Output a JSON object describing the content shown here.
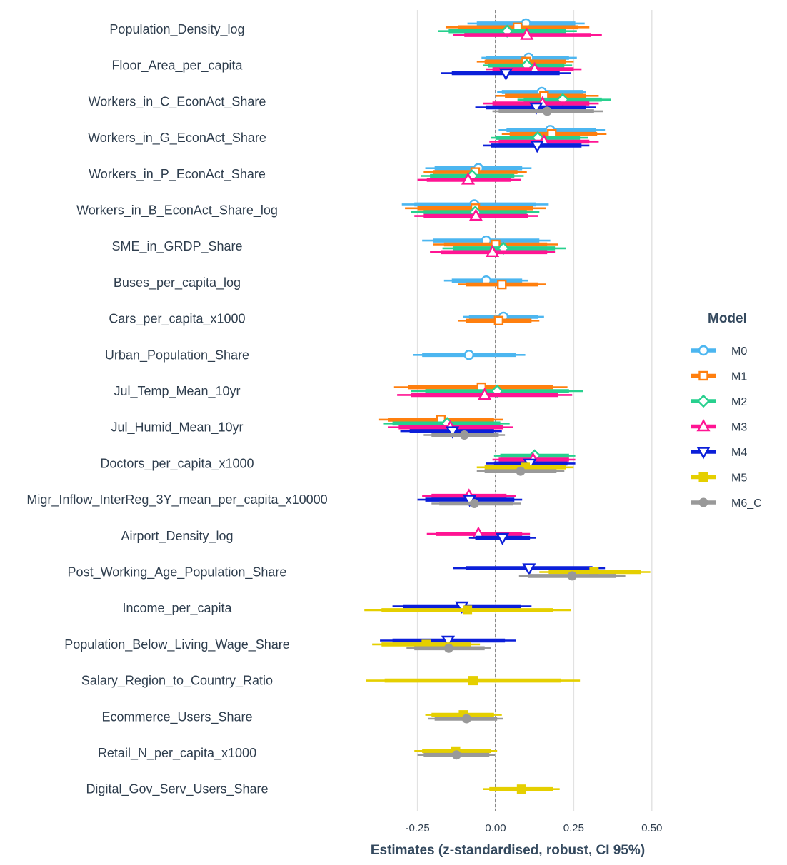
{
  "chart_data": {
    "type": "forest",
    "xlabel": "Estimates (z-standardised, robust, CI 95%)",
    "xlim": [
      -0.5,
      0.5
    ],
    "xticks": [
      -0.25,
      0.0,
      0.25,
      0.5
    ],
    "xtick_labels": [
      "-0.25",
      "0.00",
      "0.25",
      "0.50"
    ],
    "reference_line": 0,
    "legend_title": "Model",
    "legend_position": "right",
    "models": [
      {
        "name": "M0",
        "color": "#4cb6f0",
        "marker": "circle"
      },
      {
        "name": "M1",
        "color": "#ff7f0e",
        "marker": "square"
      },
      {
        "name": "M2",
        "color": "#27d08e",
        "marker": "diamond"
      },
      {
        "name": "M3",
        "color": "#ff1493",
        "marker": "triangle-up"
      },
      {
        "name": "M4",
        "color": "#0b1fd9",
        "marker": "triangle-down"
      },
      {
        "name": "M5",
        "color": "#e5cf00",
        "marker": "square-filled"
      },
      {
        "name": "M6_C",
        "color": "#999999",
        "marker": "circle-filled"
      }
    ],
    "variables": [
      {
        "name": "Population_Density_log",
        "estimates": [
          {
            "model": "M0",
            "est": 0.097,
            "lo": -0.06,
            "hi": 0.255,
            "lo95": -0.09,
            "hi95": 0.285
          },
          {
            "model": "M1",
            "est": 0.07,
            "lo": -0.12,
            "hi": 0.265,
            "lo95": -0.16,
            "hi95": 0.3
          },
          {
            "model": "M2",
            "est": 0.037,
            "lo": -0.15,
            "hi": 0.225,
            "lo95": -0.185,
            "hi95": 0.26
          },
          {
            "model": "M3",
            "est": 0.1,
            "lo": -0.1,
            "hi": 0.305,
            "lo95": -0.135,
            "hi95": 0.34
          }
        ]
      },
      {
        "name": "Floor_Area_per_capita",
        "estimates": [
          {
            "model": "M0",
            "est": 0.106,
            "lo": -0.03,
            "hi": 0.235,
            "lo95": -0.045,
            "hi95": 0.26
          },
          {
            "model": "M1",
            "est": 0.098,
            "lo": -0.035,
            "hi": 0.225,
            "lo95": -0.06,
            "hi95": 0.25
          },
          {
            "model": "M2",
            "est": 0.1,
            "lo": -0.025,
            "hi": 0.22,
            "lo95": -0.04,
            "hi95": 0.245
          },
          {
            "model": "M3",
            "est": 0.125,
            "lo": -0.01,
            "hi": 0.25,
            "lo95": -0.03,
            "hi95": 0.275
          },
          {
            "model": "M4",
            "est": 0.033,
            "lo": -0.14,
            "hi": 0.205,
            "lo95": -0.175,
            "hi95": 0.24
          }
        ]
      },
      {
        "name": "Workers_in_C_EconAct_Share",
        "estimates": [
          {
            "model": "M0",
            "est": 0.148,
            "lo": 0.02,
            "hi": 0.28,
            "lo95": 0.005,
            "hi95": 0.29
          },
          {
            "model": "M1",
            "est": 0.155,
            "lo": 0.03,
            "hi": 0.29,
            "lo95": 0.0,
            "hi95": 0.33
          },
          {
            "model": "M2",
            "est": 0.215,
            "lo": 0.09,
            "hi": 0.34,
            "lo95": 0.07,
            "hi95": 0.37
          },
          {
            "model": "M3",
            "est": 0.15,
            "lo": -0.01,
            "hi": 0.3,
            "lo95": -0.04,
            "hi95": 0.33
          },
          {
            "model": "M4",
            "est": 0.13,
            "lo": -0.03,
            "hi": 0.29,
            "lo95": -0.065,
            "hi95": 0.32
          },
          {
            "model": "M6_C",
            "est": 0.165,
            "lo": 0.01,
            "hi": 0.315,
            "lo95": -0.01,
            "hi95": 0.345
          }
        ]
      },
      {
        "name": "Workers_in_G_EconAct_Share",
        "estimates": [
          {
            "model": "M0",
            "est": 0.175,
            "lo": 0.035,
            "hi": 0.32,
            "lo95": 0.01,
            "hi95": 0.35
          },
          {
            "model": "M1",
            "est": 0.18,
            "lo": 0.045,
            "hi": 0.325,
            "lo95": 0.02,
            "hi95": 0.355
          },
          {
            "model": "M2",
            "est": 0.135,
            "lo": 0.0,
            "hi": 0.27,
            "lo95": -0.015,
            "hi95": 0.295
          },
          {
            "model": "M3",
            "est": 0.155,
            "lo": 0.01,
            "hi": 0.3,
            "lo95": -0.02,
            "hi95": 0.33
          },
          {
            "model": "M4",
            "est": 0.133,
            "lo": -0.015,
            "hi": 0.275,
            "lo95": -0.04,
            "hi95": 0.3
          }
        ]
      },
      {
        "name": "Workers_in_P_EconAct_Share",
        "estimates": [
          {
            "model": "M0",
            "est": -0.055,
            "lo": -0.195,
            "hi": 0.085,
            "lo95": -0.225,
            "hi95": 0.115
          },
          {
            "model": "M1",
            "est": -0.065,
            "lo": -0.2,
            "hi": 0.07,
            "lo95": -0.23,
            "hi95": 0.1
          },
          {
            "model": "M2",
            "est": -0.075,
            "lo": -0.21,
            "hi": 0.06,
            "lo95": -0.24,
            "hi95": 0.09
          },
          {
            "model": "M3",
            "est": -0.088,
            "lo": -0.22,
            "hi": 0.05,
            "lo95": -0.25,
            "hi95": 0.08
          }
        ]
      },
      {
        "name": "Workers_in_B_EconAct_Share_log",
        "estimates": [
          {
            "model": "M0",
            "est": -0.068,
            "lo": -0.26,
            "hi": 0.13,
            "lo95": -0.3,
            "hi95": 0.17
          },
          {
            "model": "M1",
            "est": -0.065,
            "lo": -0.25,
            "hi": 0.12,
            "lo95": -0.29,
            "hi95": 0.16
          },
          {
            "model": "M2",
            "est": -0.065,
            "lo": -0.23,
            "hi": 0.1,
            "lo95": -0.27,
            "hi95": 0.14
          },
          {
            "model": "M3",
            "est": -0.063,
            "lo": -0.23,
            "hi": 0.105,
            "lo95": -0.26,
            "hi95": 0.135
          }
        ]
      },
      {
        "name": "SME_in_GRDP_Share",
        "estimates": [
          {
            "model": "M0",
            "est": -0.03,
            "lo": -0.2,
            "hi": 0.14,
            "lo95": -0.235,
            "hi95": 0.175
          },
          {
            "model": "M1",
            "est": 0.0,
            "lo": -0.165,
            "hi": 0.165,
            "lo95": -0.2,
            "hi95": 0.2
          },
          {
            "model": "M2",
            "est": 0.025,
            "lo": -0.135,
            "hi": 0.19,
            "lo95": -0.17,
            "hi95": 0.225
          },
          {
            "model": "M3",
            "est": -0.01,
            "lo": -0.175,
            "hi": 0.165,
            "lo95": -0.21,
            "hi95": 0.19
          }
        ]
      },
      {
        "name": "Buses_per_capita_log",
        "estimates": [
          {
            "model": "M0",
            "est": -0.03,
            "lo": -0.14,
            "hi": 0.085,
            "lo95": -0.165,
            "hi95": 0.105
          },
          {
            "model": "M1",
            "est": 0.02,
            "lo": -0.095,
            "hi": 0.135,
            "lo95": -0.12,
            "hi95": 0.16
          }
        ]
      },
      {
        "name": "Cars_per_capita_x1000",
        "estimates": [
          {
            "model": "M0",
            "est": 0.025,
            "lo": -0.085,
            "hi": 0.135,
            "lo95": -0.105,
            "hi95": 0.155
          },
          {
            "model": "M1",
            "est": 0.01,
            "lo": -0.095,
            "hi": 0.115,
            "lo95": -0.12,
            "hi95": 0.14
          }
        ]
      },
      {
        "name": "Urban_Population_Share",
        "estimates": [
          {
            "model": "M0",
            "est": -0.085,
            "lo": -0.235,
            "hi": 0.065,
            "lo95": -0.265,
            "hi95": 0.095
          }
        ]
      },
      {
        "name": "Jul_Temp_Mean_10yr",
        "estimates": [
          {
            "model": "M1",
            "est": -0.045,
            "lo": -0.28,
            "hi": 0.185,
            "lo95": -0.325,
            "hi95": 0.23
          },
          {
            "model": "M2",
            "est": 0.005,
            "lo": -0.225,
            "hi": 0.235,
            "lo95": -0.27,
            "hi95": 0.28
          },
          {
            "model": "M3",
            "est": -0.035,
            "lo": -0.27,
            "hi": 0.2,
            "lo95": -0.315,
            "hi95": 0.245
          }
        ]
      },
      {
        "name": "Jul_Humid_Mean_10yr",
        "estimates": [
          {
            "model": "M1",
            "est": -0.175,
            "lo": -0.345,
            "hi": -0.005,
            "lo95": -0.375,
            "hi95": 0.025
          },
          {
            "model": "M2",
            "est": -0.155,
            "lo": -0.33,
            "hi": 0.015,
            "lo95": -0.36,
            "hi95": 0.045
          },
          {
            "model": "M3",
            "est": -0.145,
            "lo": -0.31,
            "hi": 0.025,
            "lo95": -0.345,
            "hi95": 0.055
          },
          {
            "model": "M4",
            "est": -0.138,
            "lo": -0.275,
            "hi": -0.005,
            "lo95": -0.305,
            "hi95": 0.02
          },
          {
            "model": "M6_C",
            "est": -0.1,
            "lo": -0.205,
            "hi": 0.01,
            "lo95": -0.23,
            "hi95": 0.03
          }
        ]
      },
      {
        "name": "Doctors_per_capita_x1000",
        "estimates": [
          {
            "model": "M2",
            "est": 0.125,
            "lo": 0.015,
            "hi": 0.235,
            "lo95": -0.005,
            "hi95": 0.255
          },
          {
            "model": "M3",
            "est": 0.12,
            "lo": 0.01,
            "hi": 0.235,
            "lo95": -0.01,
            "hi95": 0.255
          },
          {
            "model": "M4",
            "est": 0.11,
            "lo": -0.005,
            "hi": 0.23,
            "lo95": -0.03,
            "hi95": 0.255
          },
          {
            "model": "M5",
            "est": 0.095,
            "lo": -0.035,
            "hi": 0.225,
            "lo95": -0.06,
            "hi95": 0.25
          },
          {
            "model": "M6_C",
            "est": 0.08,
            "lo": -0.035,
            "hi": 0.195,
            "lo95": -0.06,
            "hi95": 0.22
          }
        ]
      },
      {
        "name": "Migr_Inflow_InterReg_3Y_mean_per_capita_x10000",
        "estimates": [
          {
            "model": "M3",
            "est": -0.085,
            "lo": -0.205,
            "hi": 0.035,
            "lo95": -0.235,
            "hi95": 0.065
          },
          {
            "model": "M4",
            "est": -0.083,
            "lo": -0.225,
            "hi": 0.06,
            "lo95": -0.25,
            "hi95": 0.085
          },
          {
            "model": "M6_C",
            "est": -0.068,
            "lo": -0.18,
            "hi": 0.055,
            "lo95": -0.205,
            "hi95": 0.08
          }
        ]
      },
      {
        "name": "Airport_Density_log",
        "estimates": [
          {
            "model": "M3",
            "est": -0.055,
            "lo": -0.19,
            "hi": 0.085,
            "lo95": -0.22,
            "hi95": 0.11
          },
          {
            "model": "M4",
            "est": 0.022,
            "lo": -0.065,
            "hi": 0.11,
            "lo95": -0.085,
            "hi95": 0.13
          }
        ]
      },
      {
        "name": "Post_Working_Age_Population_Share",
        "estimates": [
          {
            "model": "M4",
            "est": 0.107,
            "lo": -0.095,
            "hi": 0.31,
            "lo95": -0.135,
            "hi95": 0.35
          },
          {
            "model": "M5",
            "est": 0.315,
            "lo": 0.17,
            "hi": 0.465,
            "lo95": 0.14,
            "hi95": 0.495
          },
          {
            "model": "M6_C",
            "est": 0.245,
            "lo": 0.105,
            "hi": 0.385,
            "lo95": 0.075,
            "hi95": 0.415
          }
        ]
      },
      {
        "name": "Income_per_capita",
        "estimates": [
          {
            "model": "M4",
            "est": -0.108,
            "lo": -0.295,
            "hi": 0.08,
            "lo95": -0.33,
            "hi95": 0.115
          },
          {
            "model": "M5",
            "est": -0.09,
            "lo": -0.365,
            "hi": 0.185,
            "lo95": -0.42,
            "hi95": 0.24
          }
        ]
      },
      {
        "name": "Population_Below_Living_Wage_Share",
        "estimates": [
          {
            "model": "M4",
            "est": -0.152,
            "lo": -0.33,
            "hi": 0.03,
            "lo95": -0.37,
            "hi95": 0.065
          },
          {
            "model": "M5",
            "est": -0.222,
            "lo": -0.365,
            "hi": -0.08,
            "lo95": -0.395,
            "hi95": -0.05
          },
          {
            "model": "M6_C",
            "est": -0.15,
            "lo": -0.26,
            "hi": -0.035,
            "lo95": -0.285,
            "hi95": -0.015
          }
        ]
      },
      {
        "name": "Salary_Region_to_Country_Ratio",
        "estimates": [
          {
            "model": "M5",
            "est": -0.072,
            "lo": -0.355,
            "hi": 0.21,
            "lo95": -0.415,
            "hi95": 0.27
          }
        ]
      },
      {
        "name": "Ecommerce_Users_Share",
        "estimates": [
          {
            "model": "M5",
            "est": -0.103,
            "lo": -0.205,
            "hi": -0.005,
            "lo95": -0.225,
            "hi95": 0.02
          },
          {
            "model": "M6_C",
            "est": -0.093,
            "lo": -0.195,
            "hi": 0.005,
            "lo95": -0.215,
            "hi95": 0.025
          }
        ]
      },
      {
        "name": "Retail_N_per_capita_x1000",
        "estimates": [
          {
            "model": "M5",
            "est": -0.128,
            "lo": -0.235,
            "hi": -0.015,
            "lo95": -0.26,
            "hi95": 0.005
          },
          {
            "model": "M6_C",
            "est": -0.125,
            "lo": -0.23,
            "hi": -0.02,
            "lo95": -0.25,
            "hi95": 0.0
          }
        ]
      },
      {
        "name": "Digital_Gov_Serv_Users_Share",
        "estimates": [
          {
            "model": "M5",
            "est": 0.083,
            "lo": -0.02,
            "hi": 0.185,
            "lo95": -0.04,
            "hi95": 0.205
          }
        ]
      }
    ]
  }
}
